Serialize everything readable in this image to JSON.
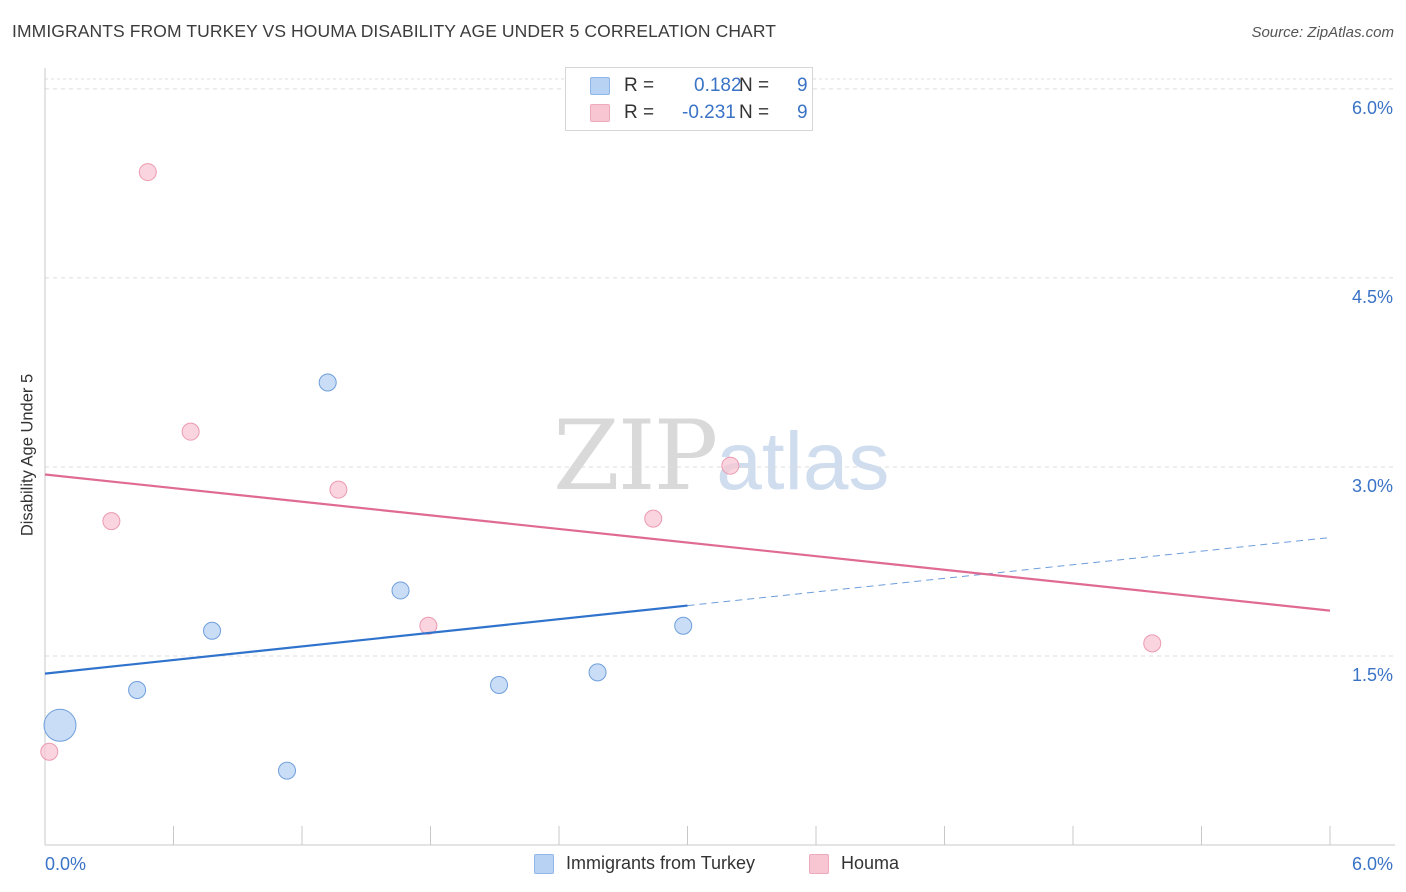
{
  "title": "IMMIGRANTS FROM TURKEY VS HOUMA DISABILITY AGE UNDER 5 CORRELATION CHART",
  "source": "Source: ZipAtlas.com",
  "watermark": {
    "zip": "ZIP",
    "atlas": "atlas"
  },
  "legend": {
    "rows": [
      {
        "r_label": "R =",
        "r_value": "0.182",
        "n_label": "N =",
        "n_value": "9",
        "color": "#b7d2f3"
      },
      {
        "r_label": "R =",
        "r_value": "-0.231",
        "n_label": "N =",
        "n_value": "9",
        "color": "#f8c6d3"
      }
    ]
  },
  "bottom_legend": [
    {
      "label": "Immigrants from Turkey",
      "color": "#b7d2f3"
    },
    {
      "label": "Houma",
      "color": "#f8c6d3"
    }
  ],
  "chart_data": {
    "type": "scatter",
    "ylabel": "Disability Age Under 5",
    "xlim": [
      0,
      6
    ],
    "ylim": [
      0,
      6.15
    ],
    "x_tick_labels": [
      "0.0%",
      "6.0%"
    ],
    "y_ticks": [
      1.5,
      3.0,
      4.5,
      6.0
    ],
    "y_tick_labels": [
      "1.5%",
      "3.0%",
      "4.5%",
      "6.0%"
    ],
    "grid": "horizontal dashed",
    "series": [
      {
        "name": "Immigrants from Turkey",
        "color": "#b7d2f3",
        "stroke": "#6f9fdc",
        "line_color": "#2f73cc",
        "points": [
          {
            "x": 0.07,
            "y": 0.95,
            "big": true
          },
          {
            "x": 0.43,
            "y": 1.23
          },
          {
            "x": 0.78,
            "y": 1.7
          },
          {
            "x": 1.13,
            "y": 0.59
          },
          {
            "x": 1.32,
            "y": 3.67
          },
          {
            "x": 1.66,
            "y": 2.02
          },
          {
            "x": 2.12,
            "y": 1.27
          },
          {
            "x": 2.58,
            "y": 1.37
          },
          {
            "x": 2.98,
            "y": 1.74
          }
        ],
        "trend": {
          "x0": 0,
          "y0": 1.36,
          "x1": 3.0,
          "y1": 1.9,
          "x_ext": 6.0,
          "y_ext": 2.44
        }
      },
      {
        "name": "Houma",
        "color": "#f8c6d3",
        "stroke": "#ec9bb1",
        "line_color": "#e06b92",
        "points": [
          {
            "x": 0.02,
            "y": 0.74
          },
          {
            "x": 0.31,
            "y": 2.57
          },
          {
            "x": 0.48,
            "y": 5.34
          },
          {
            "x": 0.68,
            "y": 3.28
          },
          {
            "x": 1.37,
            "y": 2.82
          },
          {
            "x": 1.79,
            "y": 1.74
          },
          {
            "x": 2.84,
            "y": 2.59
          },
          {
            "x": 3.2,
            "y": 3.01
          },
          {
            "x": 5.17,
            "y": 1.6
          }
        ],
        "trend": {
          "x0": 0,
          "y0": 2.94,
          "x1": 6.0,
          "y1": 1.86
        }
      }
    ]
  }
}
